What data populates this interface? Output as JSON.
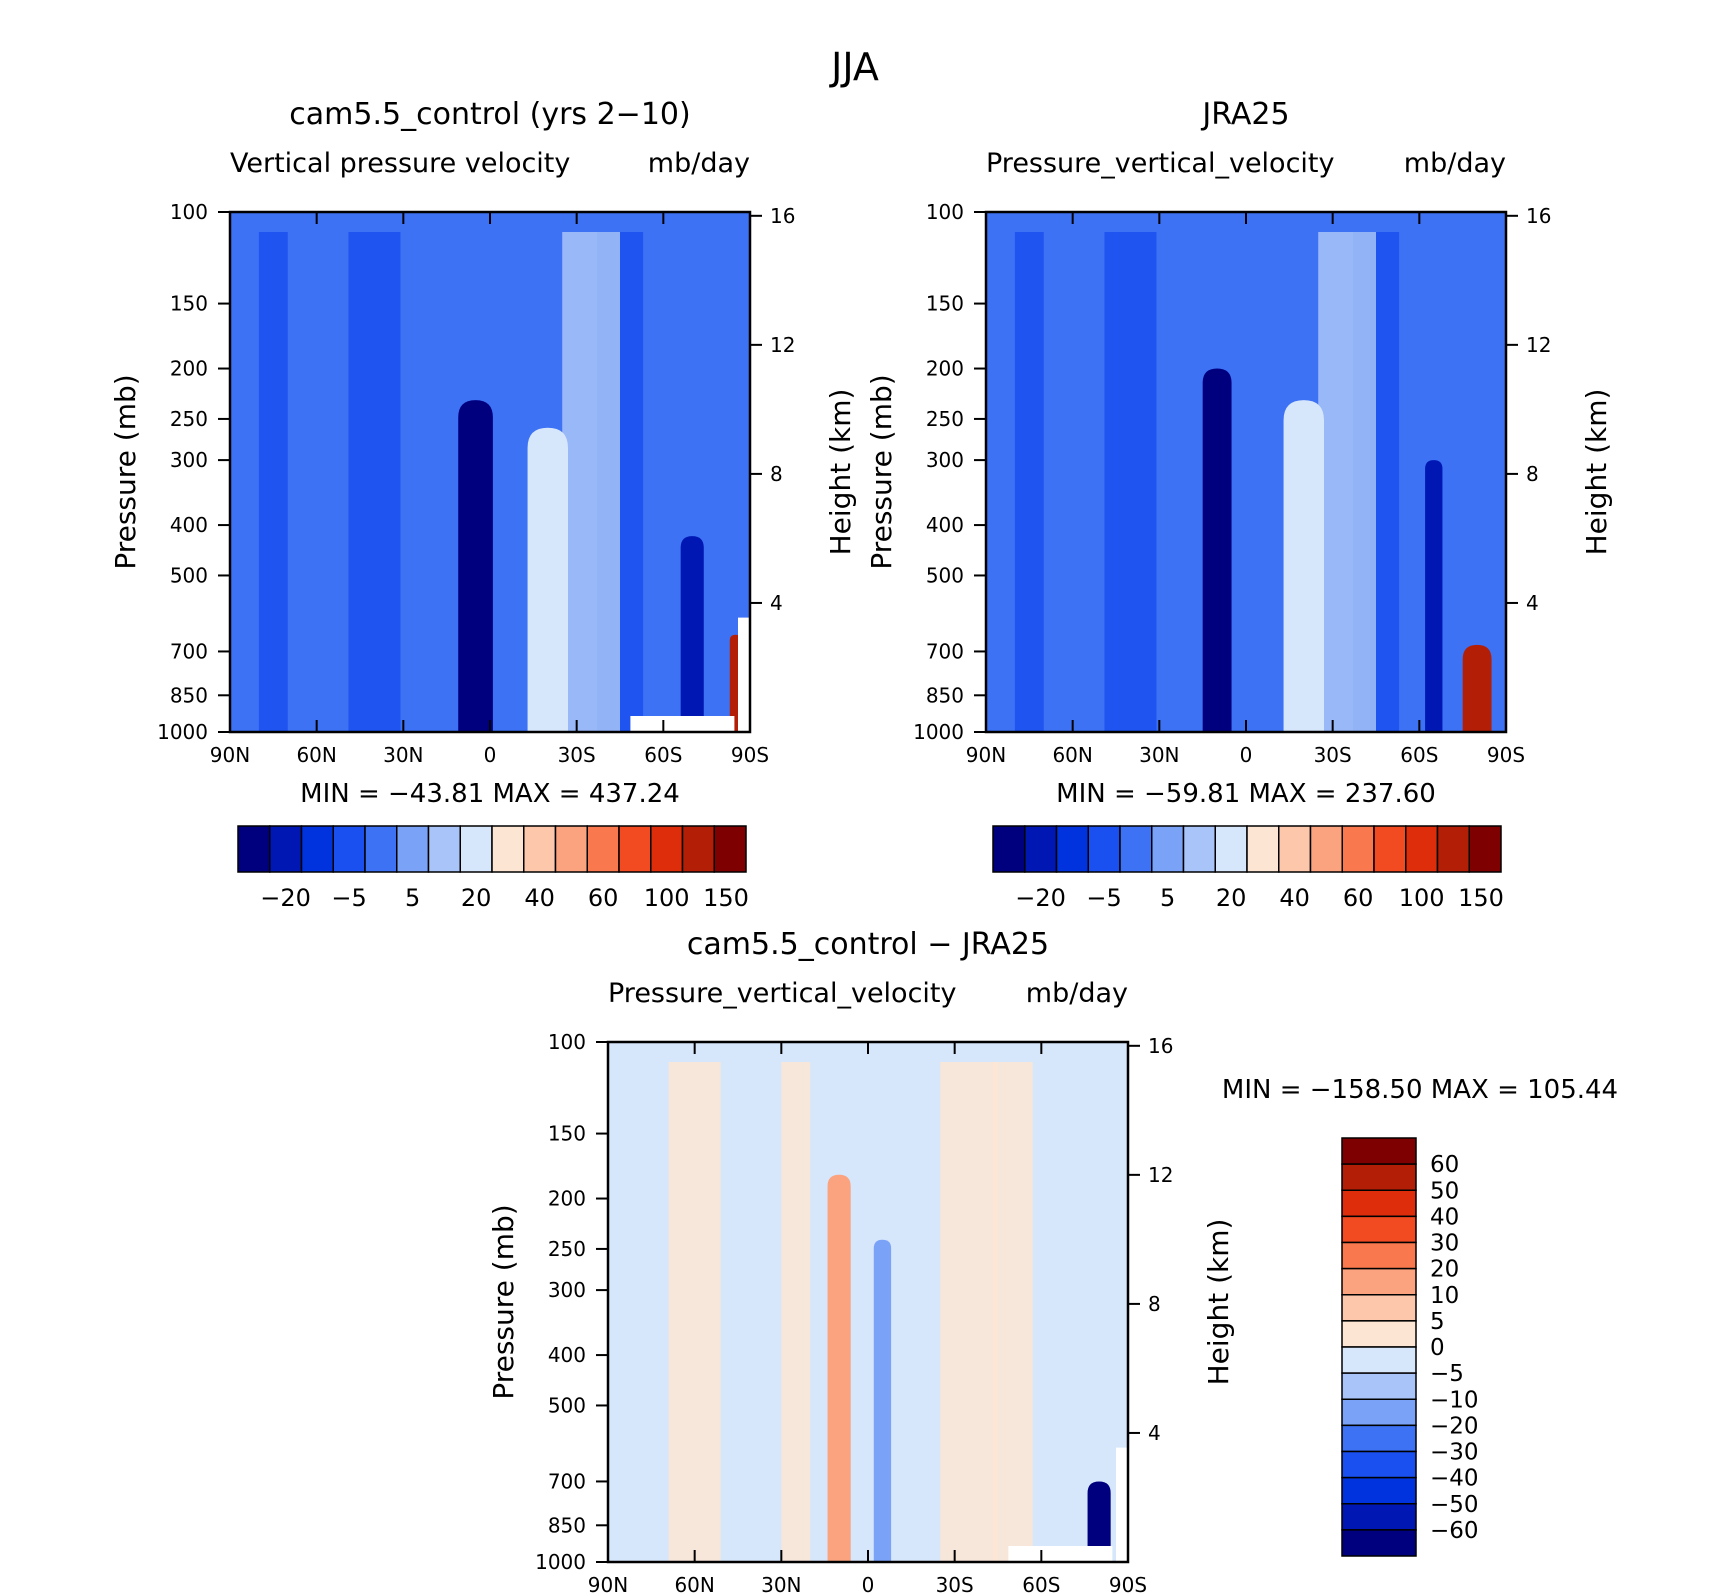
{
  "figure": {
    "title": "JJA"
  },
  "colors": {
    "abs_scale": [
      "#00007f",
      "#0017b3",
      "#0033dd",
      "#1a4ff0",
      "#3d72f5",
      "#7aa2f7",
      "#a8c4f8",
      "#d6e6fb",
      "#fde5d4",
      "#fcc7ab",
      "#fba27f",
      "#f9784d",
      "#f24a21",
      "#dd2d0a",
      "#b31f06",
      "#7f0000"
    ],
    "diff_scale": [
      "#00007f",
      "#0017b3",
      "#0033dd",
      "#1a4ff0",
      "#3d72f5",
      "#7aa2f7",
      "#a8c4f8",
      "#d6e6fb",
      "#fde5d4",
      "#fcc7ab",
      "#fba27f",
      "#f9784d",
      "#f24a21",
      "#dd2d0a",
      "#b31f06",
      "#7f0000"
    ]
  },
  "chart_data": [
    {
      "type": "heatmap",
      "title": "cam5.5_control (yrs 2−10)",
      "subtitle_left": "Vertical pressure velocity",
      "subtitle_right": "mb/day",
      "ylabel": "Pressure (mb)",
      "y2label": "Height (km)",
      "x_ticks": [
        "90N",
        "60N",
        "30N",
        "0",
        "30S",
        "60S",
        "90S"
      ],
      "y_ticks": [
        100,
        150,
        200,
        250,
        300,
        400,
        500,
        700,
        850,
        1000
      ],
      "y2_ticks": [
        16,
        12,
        8,
        4
      ],
      "ylim": [
        1000,
        100
      ],
      "stats": "MIN = −43.81   MAX = 437.24",
      "colorbar_labels": [
        "−20",
        "−5",
        "5",
        "20",
        "40",
        "60",
        "100",
        "150"
      ],
      "features": [
        {
          "lat": -5,
          "p_top": 230,
          "width": 12,
          "level": 0
        },
        {
          "lat": 20,
          "p_top": 260,
          "width": 14,
          "level": 7
        },
        {
          "lat": 70,
          "p_top": 420,
          "width": 8,
          "level": 1
        },
        {
          "lat": 85,
          "p_top": 650,
          "width": 4,
          "level": 14
        }
      ]
    },
    {
      "type": "heatmap",
      "title": "JRA25",
      "subtitle_left": "Pressure_vertical_velocity",
      "subtitle_right": "mb/day",
      "ylabel": "Pressure (mb)",
      "y2label": "Height (km)",
      "x_ticks": [
        "90N",
        "60N",
        "30N",
        "0",
        "30S",
        "60S",
        "90S"
      ],
      "y_ticks": [
        100,
        150,
        200,
        250,
        300,
        400,
        500,
        700,
        850,
        1000
      ],
      "y2_ticks": [
        16,
        12,
        8,
        4
      ],
      "ylim": [
        1000,
        100
      ],
      "stats": "MIN = −59.81   MAX = 237.60",
      "colorbar_labels": [
        "−20",
        "−5",
        "5",
        "20",
        "40",
        "60",
        "100",
        "150"
      ],
      "features": [
        {
          "lat": -10,
          "p_top": 200,
          "width": 10,
          "level": 0
        },
        {
          "lat": 20,
          "p_top": 230,
          "width": 14,
          "level": 7
        },
        {
          "lat": 65,
          "p_top": 300,
          "width": 6,
          "level": 1
        },
        {
          "lat": 80,
          "p_top": 680,
          "width": 10,
          "level": 14
        }
      ]
    },
    {
      "type": "heatmap",
      "title": "cam5.5_control − JRA25",
      "subtitle_left": "Pressure_vertical_velocity",
      "subtitle_right": "mb/day",
      "ylabel": "Pressure (mb)",
      "y2label": "Height (km)",
      "x_ticks": [
        "90N",
        "60N",
        "30N",
        "0",
        "30S",
        "60S",
        "90S"
      ],
      "y_ticks": [
        100,
        150,
        200,
        250,
        300,
        400,
        500,
        700,
        850,
        1000
      ],
      "y2_ticks": [
        16,
        12,
        8,
        4
      ],
      "ylim": [
        1000,
        100
      ],
      "stats": "MIN = −158.50   MAX = 105.44",
      "colorbar_labels": [
        "60",
        "50",
        "40",
        "30",
        "20",
        "10",
        "5",
        "0",
        "−5",
        "−10",
        "−20",
        "−30",
        "−40",
        "−50",
        "−60"
      ],
      "features": [
        {
          "lat": -10,
          "p_top": 180,
          "width": 8,
          "level": 10
        },
        {
          "lat": 5,
          "p_top": 240,
          "width": 6,
          "level": 5
        },
        {
          "lat": 80,
          "p_top": 700,
          "width": 8,
          "level": 0
        }
      ]
    }
  ]
}
